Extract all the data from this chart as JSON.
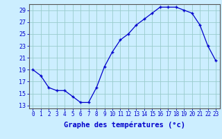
{
  "hours": [
    0,
    1,
    2,
    3,
    4,
    5,
    6,
    7,
    8,
    9,
    10,
    11,
    12,
    13,
    14,
    15,
    16,
    17,
    18,
    19,
    20,
    21,
    22,
    23
  ],
  "temps": [
    19,
    18,
    16,
    15.5,
    15.5,
    14.5,
    13.5,
    13.5,
    16,
    19.5,
    22,
    24,
    25,
    26.5,
    27.5,
    28.5,
    29.5,
    29.5,
    29.5,
    29,
    28.5,
    26.5,
    23,
    20.5
  ],
  "line_color": "#0000cc",
  "marker": "+",
  "marker_size": 3,
  "marker_edge_width": 1.0,
  "line_width": 0.9,
  "bg_color": "#cceeff",
  "grid_color": "#99cccc",
  "xlabel": "Graphe des températures (°c)",
  "xlabel_color": "#0000cc",
  "tick_color": "#0000cc",
  "xlim": [
    -0.5,
    23.5
  ],
  "ylim": [
    12.5,
    30
  ],
  "yticks": [
    13,
    15,
    17,
    19,
    21,
    23,
    25,
    27,
    29
  ],
  "xtick_labels": [
    "0",
    "1",
    "2",
    "3",
    "4",
    "5",
    "6",
    "7",
    "8",
    "9",
    "10",
    "11",
    "12",
    "13",
    "14",
    "15",
    "16",
    "17",
    "18",
    "19",
    "20",
    "21",
    "22",
    "23"
  ],
  "tick_fontsize": 5.5,
  "xlabel_fontsize": 7.5,
  "ylabel_fontsize": 6
}
